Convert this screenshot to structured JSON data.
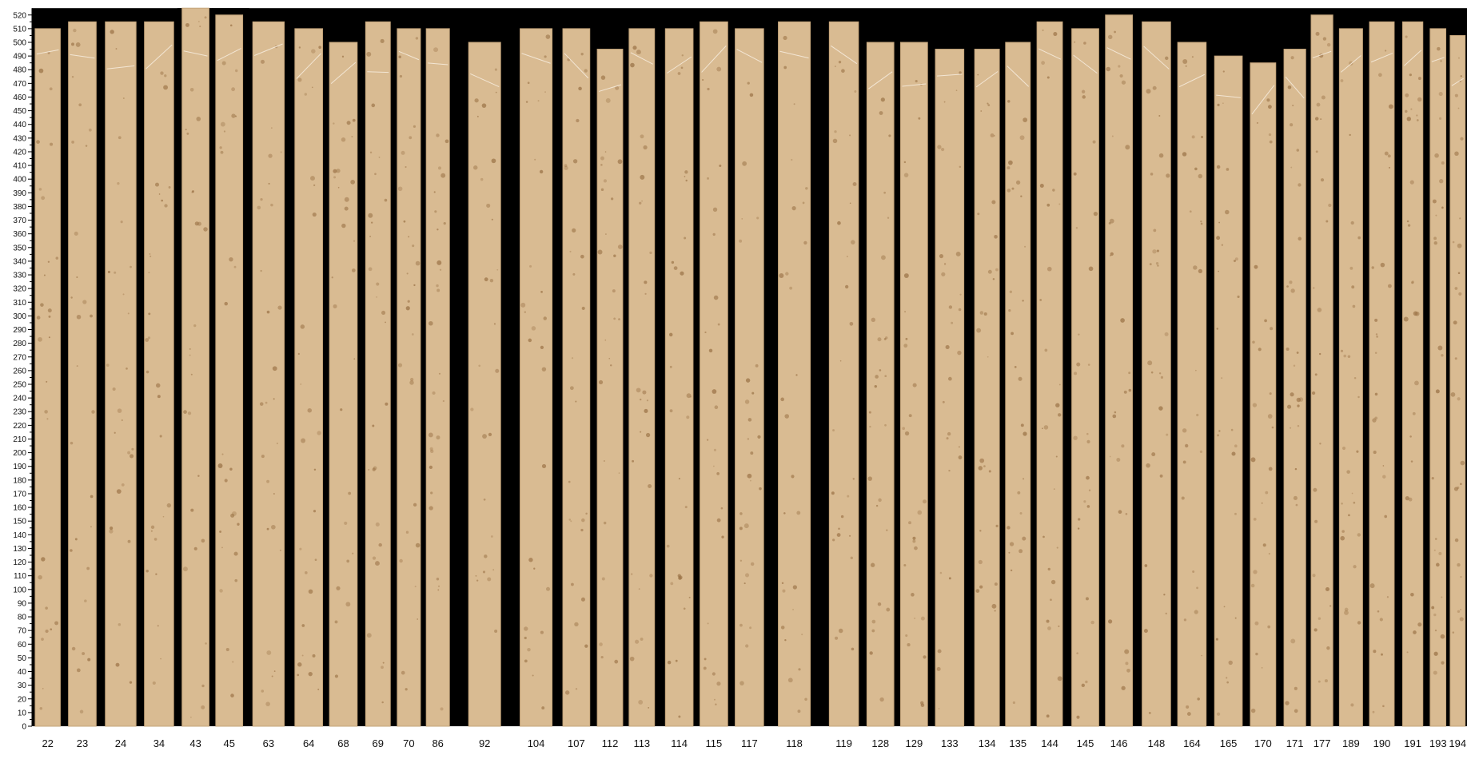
{
  "chart_data": {
    "type": "bar",
    "title": "",
    "xlabel": "",
    "ylabel": "",
    "ylim": [
      0,
      525
    ],
    "y_tick_step": 10,
    "grid": false,
    "categories": [
      "22",
      "23",
      "24",
      "34",
      "43",
      "45",
      "63",
      "64",
      "68",
      "69",
      "70",
      "86",
      "92",
      "104",
      "107",
      "112",
      "113",
      "114",
      "115",
      "117",
      "118",
      "119",
      "128",
      "129",
      "133",
      "134",
      "135",
      "144",
      "145",
      "146",
      "148",
      "164",
      "165",
      "170",
      "171",
      "177",
      "189",
      "190",
      "191",
      "193",
      "194"
    ],
    "values": [
      510,
      515,
      515,
      515,
      525,
      520,
      515,
      510,
      500,
      515,
      510,
      510,
      500,
      510,
      510,
      495,
      510,
      510,
      515,
      510,
      515,
      515,
      500,
      500,
      495,
      495,
      500,
      515,
      510,
      520,
      515,
      500,
      490,
      485,
      495,
      520,
      510,
      515,
      515,
      510,
      505
    ],
    "colors": {
      "background": "#000000",
      "gap": "#585a6c",
      "board": "#d9bb92",
      "board_edge": "#c4a47a",
      "knot": "#9c7448"
    }
  }
}
